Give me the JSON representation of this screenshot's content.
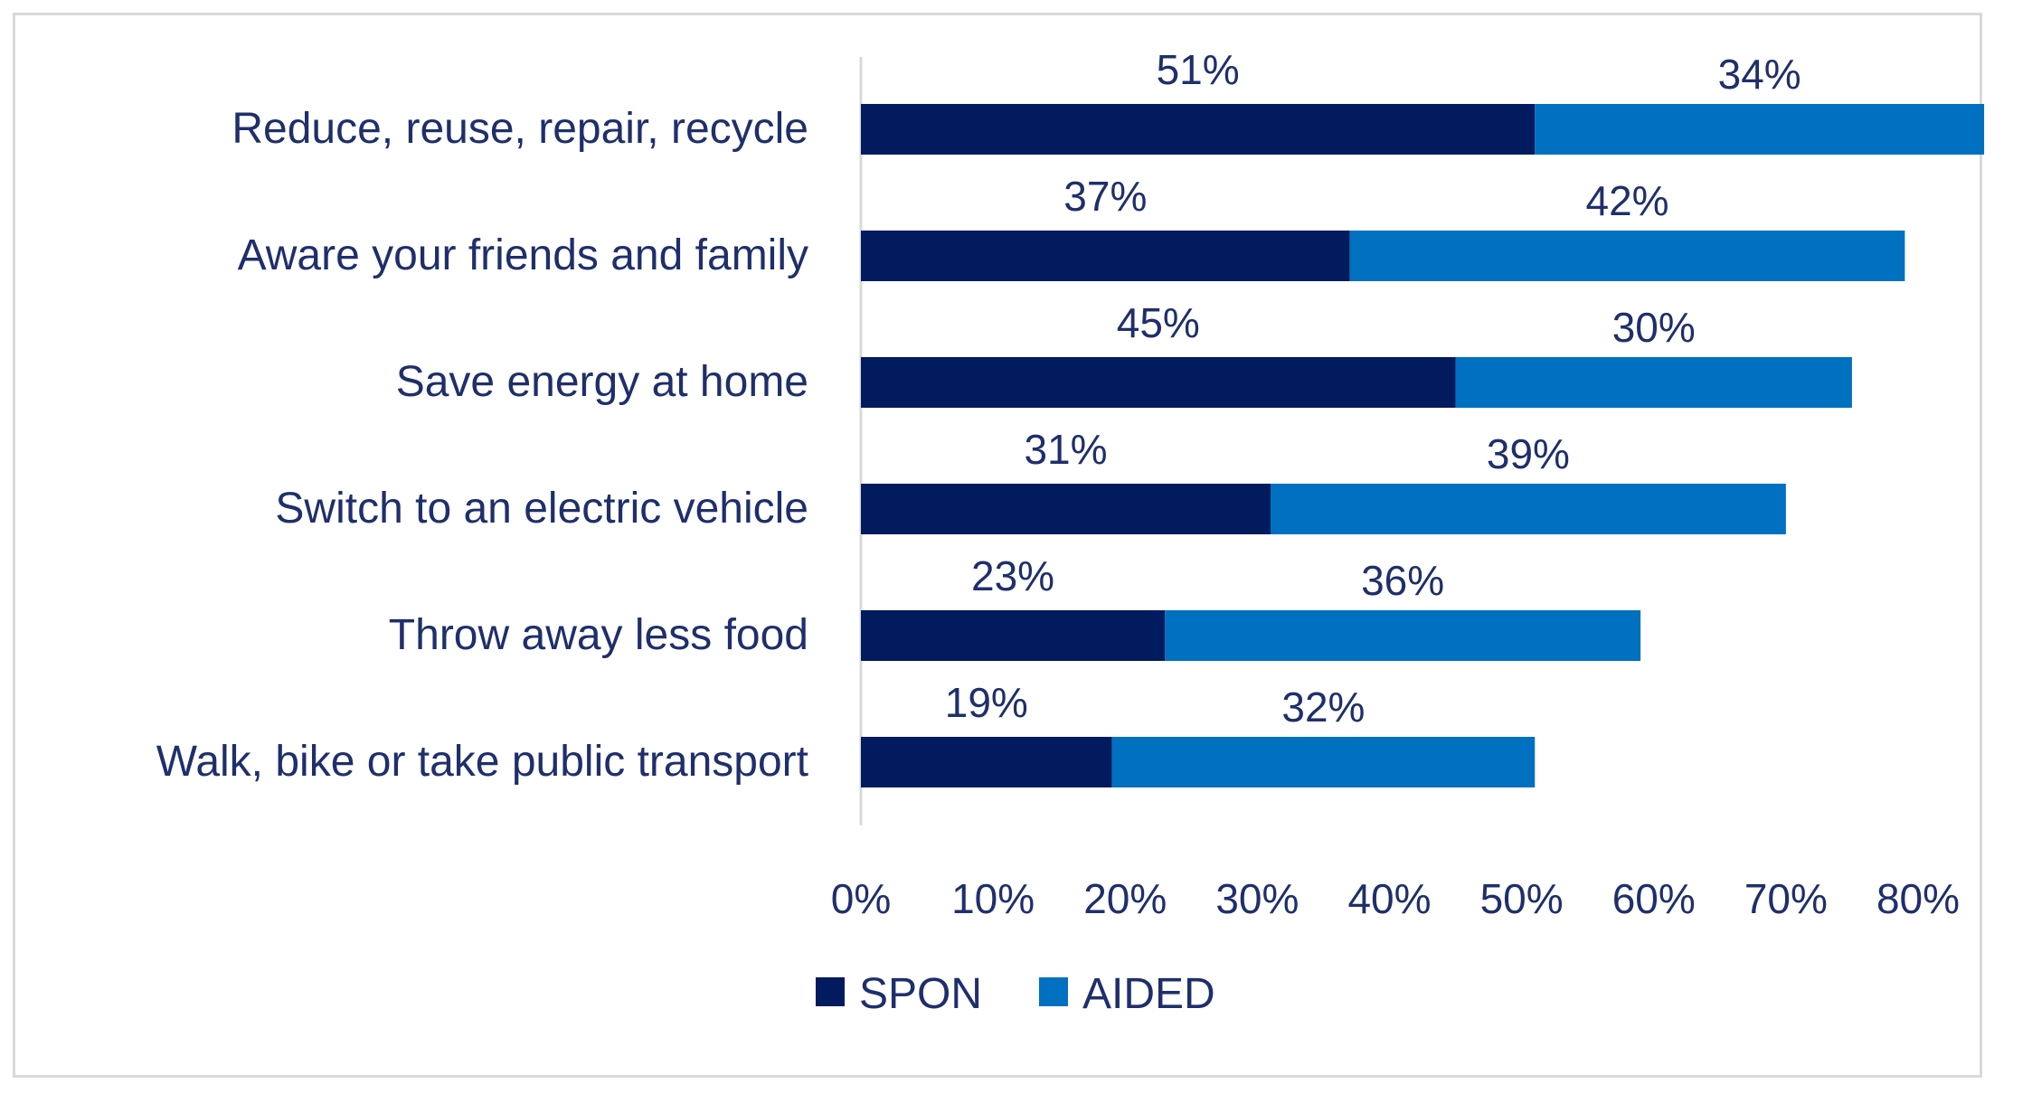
{
  "chart_data": {
    "type": "bar",
    "orientation": "horizontal",
    "stacked": true,
    "title": "",
    "xlabel": "",
    "ylabel": "",
    "categories": [
      "Reduce, reuse, repair, recycle",
      "Aware your friends and family",
      "Save energy at home",
      "Switch to an electric vehicle",
      "Throw away less food",
      "Walk, bike or take public transport"
    ],
    "series": [
      {
        "name": "SPON",
        "color": "#021a5e",
        "values": [
          51,
          37,
          45,
          31,
          23,
          19
        ],
        "labels": [
          "51%",
          "37%",
          "45%",
          "31%",
          "23%",
          "19%"
        ]
      },
      {
        "name": "AIDED",
        "color": "#0070c0",
        "values": [
          34,
          42,
          30,
          39,
          36,
          32
        ],
        "labels": [
          "34%",
          "42%",
          "30%",
          "39%",
          "36%",
          "32%"
        ]
      }
    ],
    "xlim": [
      0,
      80
    ],
    "xticks": [
      0,
      10,
      20,
      30,
      40,
      50,
      60,
      70,
      80
    ],
    "xtick_labels": [
      "0%",
      "10%",
      "20%",
      "30%",
      "40%",
      "50%",
      "60%",
      "70%",
      "80%"
    ],
    "grid": false,
    "legend_position": "bottom",
    "text_color": "#1f2f6b",
    "axis_color": "#d9d9d9"
  }
}
